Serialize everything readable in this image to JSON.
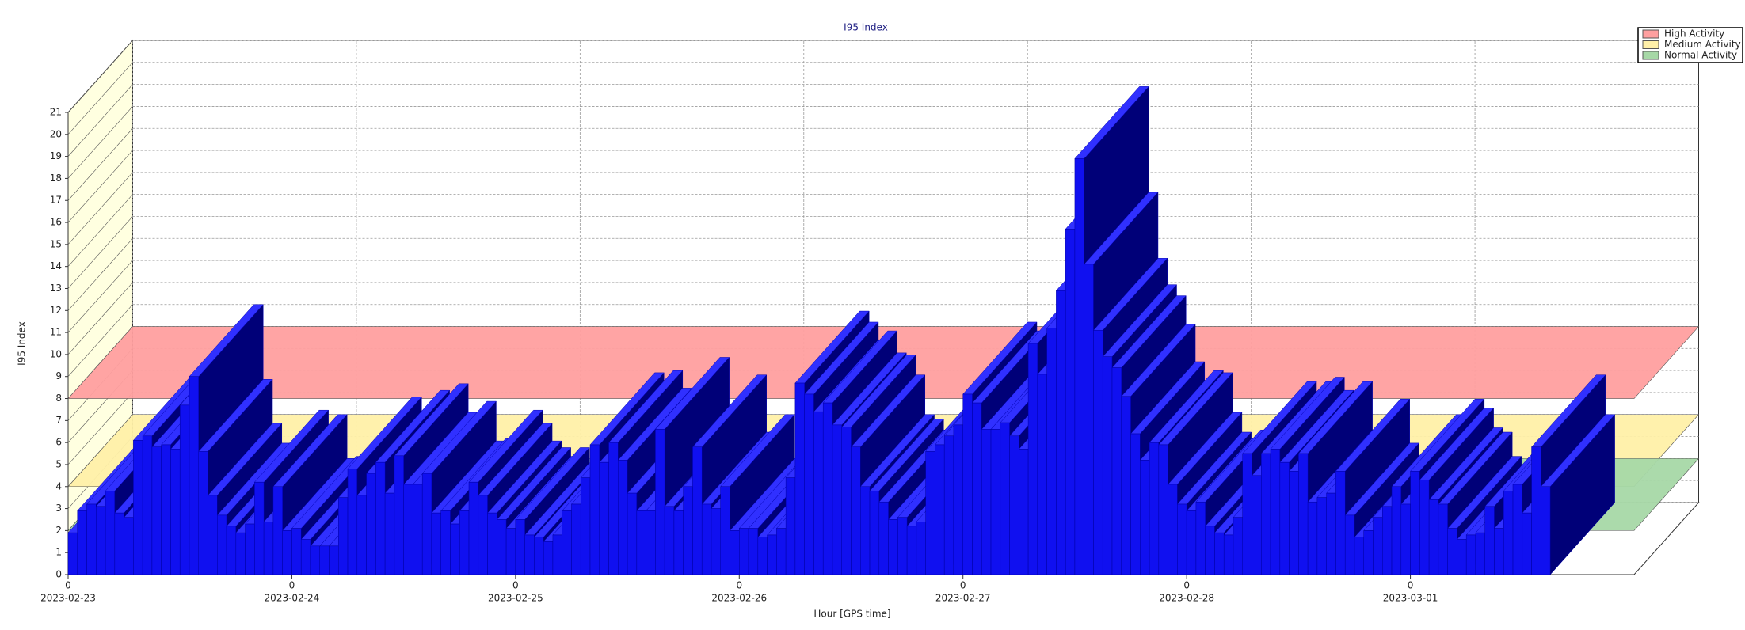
{
  "chart_data": {
    "type": "bar3d",
    "title": "I95 Index",
    "x_label": "Hour [GPS time]",
    "y_label": "I95 Index",
    "values": [
      1.9,
      2.9,
      3.2,
      3.1,
      3.8,
      2.8,
      2.6,
      6.1,
      6.3,
      5.8,
      5.9,
      5.7,
      7.7,
      9.0,
      5.6,
      3.6,
      2.7,
      2.2,
      1.9,
      2.3,
      4.2,
      2.4,
      4.0,
      2.0,
      2.1,
      1.6,
      1.3,
      1.3,
      1.3,
      3.5,
      4.8,
      3.6,
      4.6,
      5.1,
      3.7,
      5.4,
      4.1,
      4.1,
      4.6,
      2.8,
      2.9,
      2.3,
      2.9,
      4.2,
      3.6,
      2.8,
      2.5,
      2.1,
      2.5,
      1.8,
      1.7,
      1.5,
      1.8,
      2.9,
      3.2,
      4.4,
      5.9,
      5.1,
      6.0,
      5.2,
      3.7,
      2.9,
      2.9,
      6.6,
      3.1,
      2.9,
      4.0,
      5.8,
      3.2,
      3.0,
      4.0,
      2.0,
      2.1,
      2.1,
      1.7,
      1.8,
      2.1,
      4.4,
      8.7,
      8.2,
      7.4,
      7.8,
      6.8,
      6.7,
      5.8,
      4.0,
      3.8,
      3.3,
      2.5,
      2.6,
      2.2,
      2.4,
      5.6,
      5.9,
      6.3,
      6.8,
      8.2,
      7.8,
      6.6,
      6.6,
      6.9,
      6.3,
      5.7,
      10.5,
      9.1,
      11.2,
      12.9,
      15.7,
      18.9,
      14.1,
      11.1,
      9.9,
      9.4,
      8.1,
      6.4,
      5.2,
      6.0,
      5.9,
      4.1,
      3.2,
      2.9,
      3.3,
      2.2,
      1.9,
      1.8,
      2.6,
      5.5,
      4.5,
      5.5,
      5.7,
      5.1,
      4.7,
      5.5,
      3.3,
      3.5,
      3.7,
      4.7,
      2.7,
      1.7,
      2.0,
      2.6,
      3.1,
      4.0,
      3.2,
      4.7,
      4.3,
      3.4,
      3.2,
      2.1,
      1.6,
      1.8,
      1.9,
      3.1,
      2.1,
      3.8,
      4.1,
      2.8,
      5.8,
      4.0
    ],
    "color": "#1010f0",
    "xlim": [
      0,
      168
    ],
    "xticks": [
      {
        "value": 0,
        "label": "0"
      },
      {
        "value": 24,
        "label": "0"
      },
      {
        "value": 48,
        "label": "0"
      },
      {
        "value": 72,
        "label": "0"
      },
      {
        "value": 96,
        "label": "0"
      },
      {
        "value": 120,
        "label": "0"
      },
      {
        "value": 144,
        "label": "0"
      }
    ],
    "xtick_dates": [
      "2023-02-23",
      "2023-02-24",
      "2023-02-25",
      "2023-02-26",
      "2023-02-27",
      "2023-02-28",
      "2023-03-01"
    ],
    "ylim": [
      0,
      21
    ],
    "yticks": [
      0,
      1,
      2,
      3,
      4,
      5,
      6,
      7,
      8,
      9,
      10,
      11,
      12,
      13,
      14,
      15,
      16,
      17,
      18,
      19,
      20,
      21
    ],
    "grid": true,
    "thresholds": [
      {
        "name": "High Activity",
        "color": "#ff9f9f",
        "value": 8
      },
      {
        "name": "Medium Activity",
        "color": "#fff0a8",
        "value": 4
      },
      {
        "name": "Normal Activity",
        "color": "#a6d8a6",
        "value": 2
      }
    ],
    "legend": "top-right"
  }
}
